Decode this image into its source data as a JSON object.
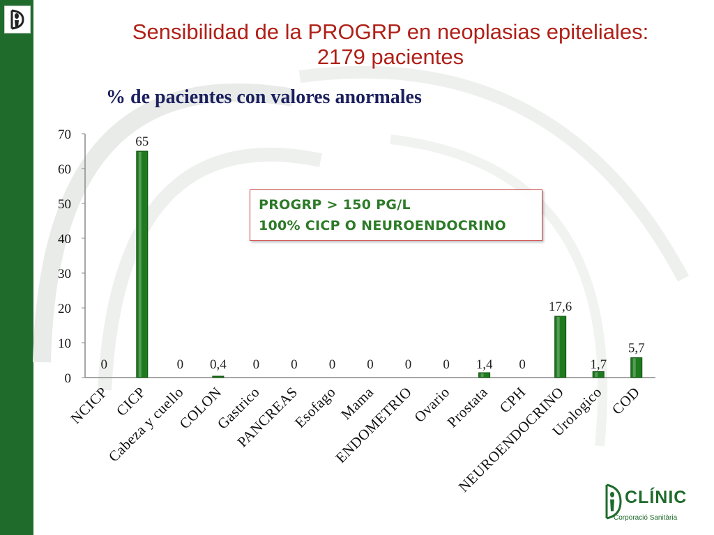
{
  "slide": {
    "title_line1": "Sensibilidad de la PROGRP en neoplasias epiteliales:",
    "title_line2": "2179 pacientes",
    "subtitle": "% de pacientes con valores anormales"
  },
  "note": {
    "line1": "PROGRP > 150 PG/L",
    "line2": "100% CICP O NEUROENDOCRINO"
  },
  "branding": {
    "name": "CLÍNIC",
    "subtitle": "Corporació Sanitària",
    "color": "#1f6b2c"
  },
  "chart_data": {
    "type": "bar",
    "categories": [
      "NCICP",
      "CICP",
      "Cabeza y cuello",
      "COLON",
      "Gastrico",
      "PANCREAS",
      "Esofago",
      "Mama",
      "ENDOMETRIO",
      "Ovario",
      "Prostata",
      "CPH",
      "NEUROENDOCRINO",
      "Urologico",
      "COD"
    ],
    "values": [
      0,
      65,
      0,
      0.4,
      0,
      0,
      0,
      0,
      0,
      0,
      1.4,
      0,
      17.6,
      1.7,
      5.7
    ],
    "data_labels": [
      "0",
      "65",
      "0",
      "0,4",
      "0",
      "0",
      "0",
      "0",
      "0",
      "0",
      "1,4",
      "0",
      "17,6",
      "1,7",
      "5,7"
    ],
    "yticks": [
      "0",
      "10",
      "20",
      "30",
      "40",
      "50",
      "60",
      "70"
    ],
    "ylim": [
      0,
      70
    ],
    "bar_color": "#1e7a1e",
    "grid": false,
    "legend": "none"
  }
}
